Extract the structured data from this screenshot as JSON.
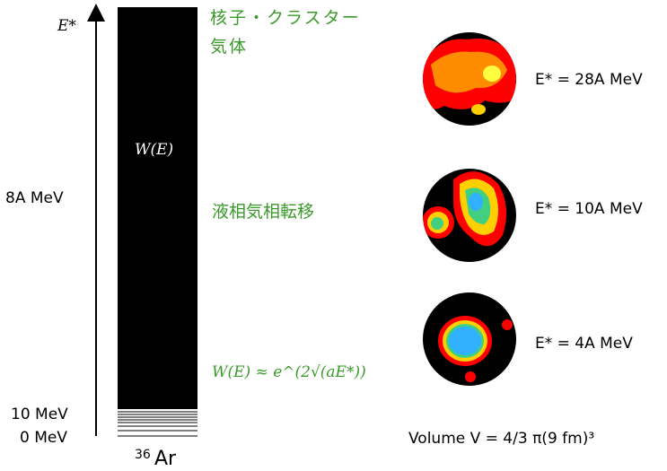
{
  "axis": {
    "label": "E*",
    "ticks": [
      "8A MeV",
      "10 MeV",
      "0 MeV"
    ]
  },
  "nucleus": {
    "mass_number": "36",
    "symbol": "Ar"
  },
  "density_label": "W(E)",
  "regions": [
    "核子・クラスター気体",
    "液相気相転移"
  ],
  "formula": "W(E) ≈ e^(2√(aE*))",
  "snapshots": [
    "E* = 28A MeV",
    "E* = 10A MeV",
    "E* = 4A MeV"
  ],
  "volume": "Volume V = 4/3 π(9 fm)³"
}
